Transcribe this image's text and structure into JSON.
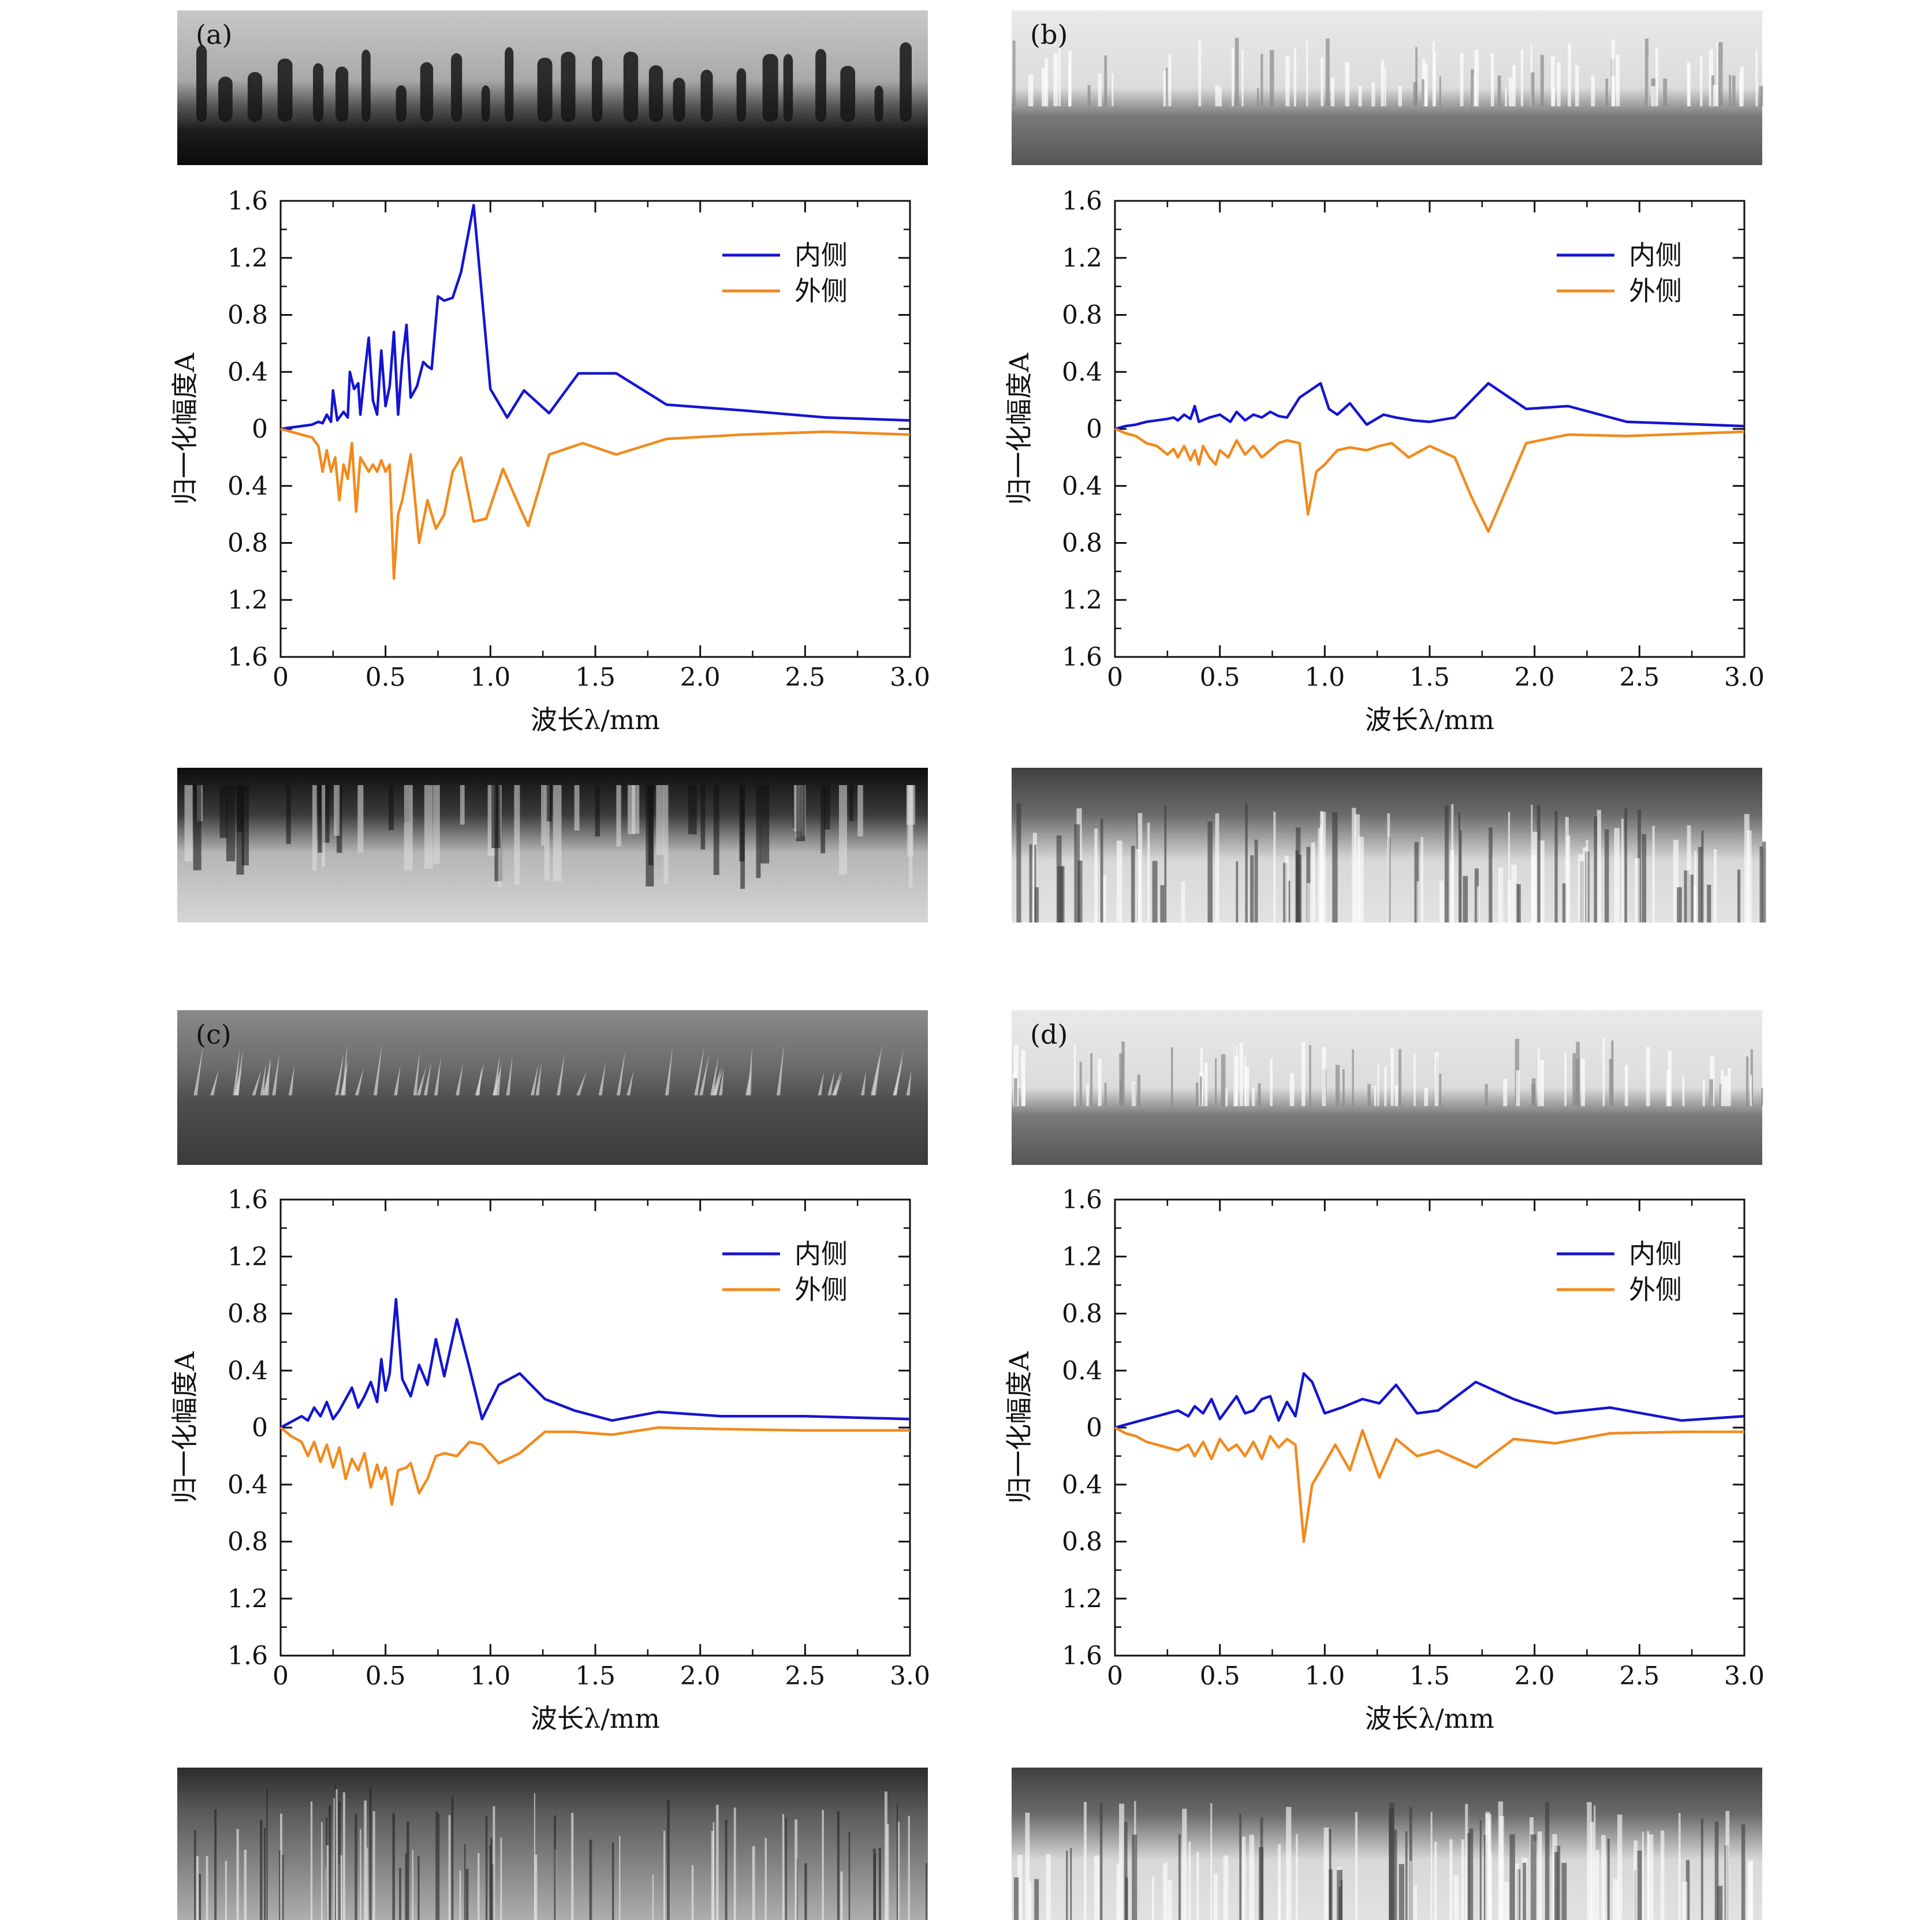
{
  "panels": [
    {
      "label": "(a)",
      "top_image": {
        "style": "dark-bottom-fingers"
      },
      "bottom_image": {
        "style": "dark-top-streaks"
      }
    },
    {
      "label": "(b)",
      "top_image": {
        "style": "bright-top-streaks"
      },
      "bottom_image": {
        "style": "bright-bottom-streaks"
      }
    },
    {
      "label": "(c)",
      "top_image": {
        "style": "faint-spikes"
      },
      "bottom_image": {
        "style": "thin-streaks"
      }
    },
    {
      "label": "(d)",
      "top_image": {
        "style": "bright-top-streaks"
      },
      "bottom_image": {
        "style": "bright-bottom-streaks"
      }
    }
  ],
  "colors": {
    "inner": "#1414d2",
    "outer": "#f28a1c",
    "axis": "#111111"
  },
  "chart_data": [
    {
      "type": "line",
      "panel": "(a)",
      "xlabel": "波长λ/mm",
      "ylabel": "归一化幅度A",
      "xlim": [
        0,
        3.0
      ],
      "ylim": [
        -1.6,
        1.6
      ],
      "xticks": [
        "0",
        "0.5",
        "1.0",
        "1.5",
        "2.0",
        "2.5",
        "3.0"
      ],
      "yticks": [
        "1.6",
        "1.2",
        "0.8",
        "0.4",
        "0",
        "0.4",
        "0.8",
        "1.2",
        "1.6"
      ],
      "legend": [
        "内侧",
        "外侧"
      ],
      "series": [
        {
          "name": "内侧",
          "x": [
            0,
            0.05,
            0.1,
            0.15,
            0.18,
            0.2,
            0.22,
            0.24,
            0.25,
            0.27,
            0.3,
            0.32,
            0.33,
            0.35,
            0.37,
            0.38,
            0.4,
            0.42,
            0.44,
            0.46,
            0.48,
            0.5,
            0.52,
            0.54,
            0.56,
            0.58,
            0.6,
            0.62,
            0.65,
            0.68,
            0.7,
            0.72,
            0.75,
            0.78,
            0.82,
            0.86,
            0.92,
            1.0,
            1.08,
            1.16,
            1.28,
            1.42,
            1.6,
            1.84,
            2.2,
            2.6,
            3.0
          ],
          "y": [
            0,
            0.01,
            0.02,
            0.03,
            0.05,
            0.04,
            0.1,
            0.05,
            0.27,
            0.06,
            0.12,
            0.08,
            0.4,
            0.28,
            0.32,
            0.1,
            0.38,
            0.64,
            0.2,
            0.1,
            0.55,
            0.16,
            0.3,
            0.68,
            0.1,
            0.48,
            0.73,
            0.22,
            0.3,
            0.47,
            0.44,
            0.42,
            0.93,
            0.9,
            0.92,
            1.1,
            1.57,
            0.28,
            0.08,
            0.27,
            0.11,
            0.39,
            0.39,
            0.17,
            0.13,
            0.08,
            0.06
          ]
        },
        {
          "name": "外侧",
          "x": [
            0,
            0.05,
            0.1,
            0.15,
            0.18,
            0.2,
            0.22,
            0.24,
            0.26,
            0.28,
            0.3,
            0.32,
            0.34,
            0.36,
            0.38,
            0.4,
            0.42,
            0.44,
            0.46,
            0.48,
            0.5,
            0.52,
            0.54,
            0.56,
            0.58,
            0.62,
            0.66,
            0.7,
            0.74,
            0.78,
            0.82,
            0.86,
            0.92,
            0.98,
            1.06,
            1.14,
            1.18,
            1.28,
            1.44,
            1.6,
            1.84,
            2.2,
            2.6,
            3.0
          ],
          "y": [
            0,
            -0.02,
            -0.04,
            -0.06,
            -0.12,
            -0.3,
            -0.15,
            -0.3,
            -0.2,
            -0.5,
            -0.25,
            -0.35,
            -0.1,
            -0.58,
            -0.2,
            -0.25,
            -0.3,
            -0.25,
            -0.3,
            -0.22,
            -0.3,
            -0.25,
            -1.05,
            -0.6,
            -0.5,
            -0.18,
            -0.8,
            -0.5,
            -0.7,
            -0.6,
            -0.3,
            -0.2,
            -0.65,
            -0.63,
            -0.28,
            -0.55,
            -0.68,
            -0.18,
            -0.1,
            -0.18,
            -0.07,
            -0.04,
            -0.02,
            -0.04
          ]
        }
      ]
    },
    {
      "type": "line",
      "panel": "(b)",
      "xlabel": "波长λ/mm",
      "ylabel": "归一化幅度A",
      "xlim": [
        0,
        3.0
      ],
      "ylim": [
        -1.6,
        1.6
      ],
      "xticks": [
        "0",
        "0.5",
        "1.0",
        "1.5",
        "2.0",
        "2.5",
        "3.0"
      ],
      "yticks": [
        "1.6",
        "1.2",
        "0.8",
        "0.4",
        "0",
        "0.4",
        "0.8",
        "1.2",
        "1.6"
      ],
      "legend": [
        "内侧",
        "外侧"
      ],
      "series": [
        {
          "name": "内侧",
          "x": [
            0,
            0.05,
            0.1,
            0.15,
            0.2,
            0.25,
            0.28,
            0.3,
            0.33,
            0.36,
            0.38,
            0.4,
            0.45,
            0.5,
            0.55,
            0.58,
            0.62,
            0.66,
            0.7,
            0.74,
            0.78,
            0.82,
            0.88,
            0.92,
            0.98,
            1.02,
            1.06,
            1.12,
            1.2,
            1.28,
            1.34,
            1.42,
            1.5,
            1.62,
            1.7,
            1.78,
            1.96,
            2.16,
            2.44,
            3.0
          ],
          "y": [
            0,
            0.02,
            0.03,
            0.05,
            0.06,
            0.07,
            0.08,
            0.06,
            0.1,
            0.07,
            0.16,
            0.05,
            0.08,
            0.1,
            0.05,
            0.12,
            0.06,
            0.1,
            0.08,
            0.12,
            0.09,
            0.08,
            0.22,
            0.26,
            0.32,
            0.14,
            0.1,
            0.18,
            0.03,
            0.1,
            0.08,
            0.06,
            0.05,
            0.08,
            0.2,
            0.32,
            0.14,
            0.16,
            0.05,
            0.02
          ]
        },
        {
          "name": "外侧",
          "x": [
            0,
            0.05,
            0.1,
            0.15,
            0.2,
            0.25,
            0.28,
            0.3,
            0.33,
            0.36,
            0.38,
            0.4,
            0.42,
            0.45,
            0.48,
            0.5,
            0.54,
            0.58,
            0.62,
            0.66,
            0.7,
            0.74,
            0.78,
            0.82,
            0.88,
            0.92,
            0.96,
            1.0,
            1.06,
            1.12,
            1.2,
            1.26,
            1.32,
            1.4,
            1.5,
            1.62,
            1.7,
            1.78,
            1.96,
            2.16,
            2.44,
            3.0
          ],
          "y": [
            0,
            -0.03,
            -0.05,
            -0.1,
            -0.12,
            -0.18,
            -0.14,
            -0.2,
            -0.12,
            -0.22,
            -0.15,
            -0.25,
            -0.12,
            -0.2,
            -0.25,
            -0.15,
            -0.2,
            -0.08,
            -0.18,
            -0.12,
            -0.2,
            -0.15,
            -0.1,
            -0.08,
            -0.1,
            -0.6,
            -0.3,
            -0.25,
            -0.15,
            -0.13,
            -0.15,
            -0.12,
            -0.1,
            -0.2,
            -0.12,
            -0.2,
            -0.48,
            -0.72,
            -0.1,
            -0.04,
            -0.05,
            -0.02
          ]
        }
      ]
    },
    {
      "type": "line",
      "panel": "(c)",
      "xlabel": "波长λ/mm",
      "ylabel": "归一化幅度A",
      "xlim": [
        0,
        3.0
      ],
      "ylim": [
        -1.6,
        1.6
      ],
      "xticks": [
        "0",
        "0.5",
        "1.0",
        "1.5",
        "2.0",
        "2.5",
        "3.0"
      ],
      "yticks": [
        "1.6",
        "1.2",
        "0.8",
        "0.4",
        "0",
        "0.4",
        "0.8",
        "1.2",
        "1.6"
      ],
      "legend": [
        "内侧",
        "外侧"
      ],
      "series": [
        {
          "name": "内侧",
          "x": [
            0,
            0.05,
            0.1,
            0.13,
            0.16,
            0.19,
            0.22,
            0.25,
            0.28,
            0.31,
            0.34,
            0.37,
            0.4,
            0.43,
            0.46,
            0.48,
            0.5,
            0.52,
            0.55,
            0.58,
            0.62,
            0.66,
            0.7,
            0.74,
            0.78,
            0.84,
            0.9,
            0.96,
            1.04,
            1.14,
            1.26,
            1.4,
            1.58,
            1.8,
            2.1,
            2.5,
            3.0
          ],
          "y": [
            0,
            0.04,
            0.08,
            0.05,
            0.14,
            0.08,
            0.18,
            0.06,
            0.12,
            0.2,
            0.28,
            0.14,
            0.22,
            0.32,
            0.18,
            0.48,
            0.26,
            0.38,
            0.9,
            0.34,
            0.22,
            0.44,
            0.3,
            0.62,
            0.36,
            0.76,
            0.42,
            0.06,
            0.3,
            0.38,
            0.2,
            0.12,
            0.05,
            0.11,
            0.08,
            0.08,
            0.06
          ]
        },
        {
          "name": "外侧",
          "x": [
            0,
            0.05,
            0.1,
            0.13,
            0.16,
            0.19,
            0.22,
            0.25,
            0.28,
            0.31,
            0.34,
            0.37,
            0.4,
            0.43,
            0.46,
            0.48,
            0.5,
            0.53,
            0.56,
            0.6,
            0.62,
            0.66,
            0.7,
            0.74,
            0.78,
            0.84,
            0.9,
            0.96,
            1.04,
            1.14,
            1.26,
            1.4,
            1.58,
            1.8,
            2.1,
            2.5,
            3.0
          ],
          "y": [
            0,
            -0.06,
            -0.1,
            -0.2,
            -0.1,
            -0.24,
            -0.12,
            -0.28,
            -0.14,
            -0.36,
            -0.22,
            -0.3,
            -0.18,
            -0.42,
            -0.26,
            -0.36,
            -0.28,
            -0.54,
            -0.3,
            -0.28,
            -0.25,
            -0.46,
            -0.36,
            -0.2,
            -0.18,
            -0.2,
            -0.1,
            -0.12,
            -0.25,
            -0.18,
            -0.03,
            -0.03,
            -0.05,
            0.0,
            -0.01,
            -0.02,
            -0.02
          ]
        }
      ]
    },
    {
      "type": "line",
      "panel": "(d)",
      "xlabel": "波长λ/mm",
      "ylabel": "归一化幅度A",
      "xlim": [
        0,
        3.0
      ],
      "ylim": [
        -1.6,
        1.6
      ],
      "xticks": [
        "0",
        "0.5",
        "1.0",
        "1.5",
        "2.0",
        "2.5",
        "3.0"
      ],
      "yticks": [
        "1.6",
        "1.2",
        "0.8",
        "0.4",
        "0",
        "0.4",
        "0.8",
        "1.2",
        "1.6"
      ],
      "legend": [
        "内侧",
        "外侧"
      ],
      "series": [
        {
          "name": "内侧",
          "x": [
            0,
            0.05,
            0.1,
            0.15,
            0.2,
            0.25,
            0.3,
            0.35,
            0.38,
            0.42,
            0.46,
            0.5,
            0.54,
            0.58,
            0.62,
            0.66,
            0.7,
            0.74,
            0.78,
            0.82,
            0.86,
            0.9,
            0.94,
            1.0,
            1.08,
            1.18,
            1.26,
            1.34,
            1.44,
            1.54,
            1.72,
            1.9,
            2.1,
            2.36,
            2.7,
            3.0
          ],
          "y": [
            0,
            0.02,
            0.04,
            0.06,
            0.08,
            0.1,
            0.12,
            0.08,
            0.15,
            0.1,
            0.2,
            0.06,
            0.14,
            0.22,
            0.1,
            0.12,
            0.2,
            0.22,
            0.05,
            0.18,
            0.08,
            0.38,
            0.32,
            0.1,
            0.14,
            0.2,
            0.17,
            0.3,
            0.1,
            0.12,
            0.32,
            0.2,
            0.1,
            0.14,
            0.05,
            0.08
          ]
        },
        {
          "name": "外侧",
          "x": [
            0,
            0.05,
            0.1,
            0.15,
            0.2,
            0.25,
            0.3,
            0.35,
            0.38,
            0.42,
            0.46,
            0.5,
            0.54,
            0.58,
            0.62,
            0.66,
            0.7,
            0.74,
            0.78,
            0.82,
            0.86,
            0.9,
            0.94,
            1.0,
            1.05,
            1.12,
            1.18,
            1.26,
            1.34,
            1.44,
            1.54,
            1.72,
            1.9,
            2.1,
            2.36,
            2.7,
            3.0
          ],
          "y": [
            0,
            -0.04,
            -0.06,
            -0.1,
            -0.12,
            -0.14,
            -0.16,
            -0.12,
            -0.2,
            -0.1,
            -0.22,
            -0.08,
            -0.16,
            -0.12,
            -0.2,
            -0.1,
            -0.22,
            -0.06,
            -0.14,
            -0.08,
            -0.12,
            -0.8,
            -0.4,
            -0.25,
            -0.12,
            -0.3,
            -0.02,
            -0.35,
            -0.08,
            -0.2,
            -0.16,
            -0.28,
            -0.08,
            -0.11,
            -0.04,
            -0.03,
            -0.03
          ]
        }
      ]
    }
  ]
}
